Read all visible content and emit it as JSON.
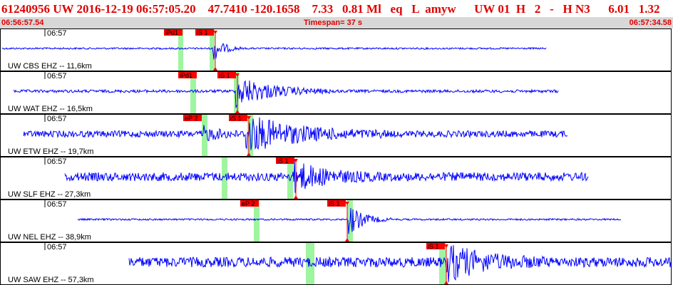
{
  "header": {
    "event_info": "61240956 UW 2016-12-19 06:57:05.20    47.7410 -120.1658    7.33   0.81 Ml   eq   L  amyw      UW 01  H   2   -   H N3      6.01   1.32",
    "start_time": "06:56:57.54",
    "timespan": "Timespan=  37 s",
    "end_time": "06:57:34.58"
  },
  "colors": {
    "trace": "#0000ff",
    "pick_label_bg": "#ff0000",
    "pick_line": "#ff0000",
    "highlight": "#9ff59f",
    "header_text": "#e00000"
  },
  "panels": [
    {
      "station": "UW CBS EHZ -- 11,6km",
      "time_label": "06:57",
      "picks": [
        {
          "label": "iPd1",
          "kind": "P"
        },
        {
          "label": "iS 1",
          "kind": "S"
        }
      ]
    },
    {
      "station": "UW WAT EHZ -- 16,5km",
      "time_label": "06:57",
      "picks": [
        {
          "label": "iPd1",
          "kind": "P"
        },
        {
          "label": "iS 1",
          "kind": "S"
        }
      ]
    },
    {
      "station": "UW ETW EHZ -- 19,7km",
      "time_label": "06:57",
      "picks": [
        {
          "label": "eP 2",
          "kind": "P"
        },
        {
          "label": "iS 1",
          "kind": "S"
        }
      ]
    },
    {
      "station": "UW SLF EHZ -- 27,3km",
      "time_label": "06:57",
      "picks": [
        {
          "label": "iS 1",
          "kind": "S"
        }
      ]
    },
    {
      "station": "UW NEL EHZ -- 38,9km",
      "time_label": "06:57",
      "picks": [
        {
          "label": "eP 2",
          "kind": "P"
        },
        {
          "label": "iS 1",
          "kind": "S"
        }
      ]
    },
    {
      "station": "UW SAW EHZ -- 57,3km",
      "time_label": "06:57",
      "picks": [
        {
          "label": "iS 1",
          "kind": "S"
        }
      ]
    }
  ]
}
